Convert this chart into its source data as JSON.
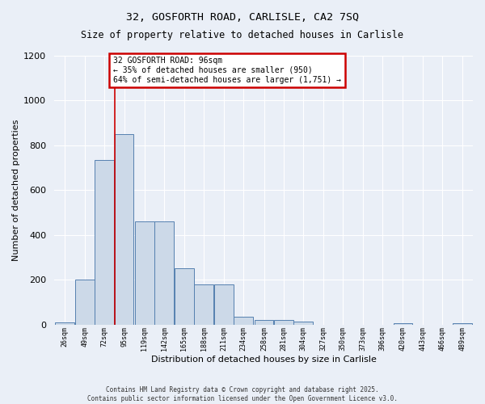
{
  "title_line1": "32, GOSFORTH ROAD, CARLISLE, CA2 7SQ",
  "title_line2": "Size of property relative to detached houses in Carlisle",
  "xlabel": "Distribution of detached houses by size in Carlisle",
  "ylabel": "Number of detached properties",
  "bin_edges": [
    26,
    49,
    72,
    95,
    119,
    142,
    165,
    188,
    211,
    234,
    258,
    281,
    304,
    327,
    350,
    373,
    396,
    420,
    443,
    466,
    489
  ],
  "bin_labels": [
    "26sqm",
    "49sqm",
    "72sqm",
    "95sqm",
    "119sqm",
    "142sqm",
    "165sqm",
    "188sqm",
    "211sqm",
    "234sqm",
    "258sqm",
    "281sqm",
    "304sqm",
    "327sqm",
    "350sqm",
    "373sqm",
    "396sqm",
    "420sqm",
    "443sqm",
    "466sqm",
    "489sqm"
  ],
  "bar_heights": [
    10,
    200,
    735,
    850,
    460,
    460,
    250,
    180,
    180,
    35,
    20,
    20,
    15,
    0,
    0,
    0,
    0,
    5,
    0,
    0,
    5
  ],
  "bar_color": "#ccd9e8",
  "bar_edge_color": "#5580b0",
  "red_line_x": 96,
  "annotation_text": "32 GOSFORTH ROAD: 96sqm\n← 35% of detached houses are smaller (950)\n64% of semi-detached houses are larger (1,751) →",
  "annotation_box_color": "#ffffff",
  "annotation_edge_color": "#cc0000",
  "ylim": [
    0,
    1200
  ],
  "yticks": [
    0,
    200,
    400,
    600,
    800,
    1000,
    1200
  ],
  "background_color": "#eaeff7",
  "grid_color": "#ffffff",
  "footer_line1": "Contains HM Land Registry data © Crown copyright and database right 2025.",
  "footer_line2": "Contains public sector information licensed under the Open Government Licence v3.0."
}
